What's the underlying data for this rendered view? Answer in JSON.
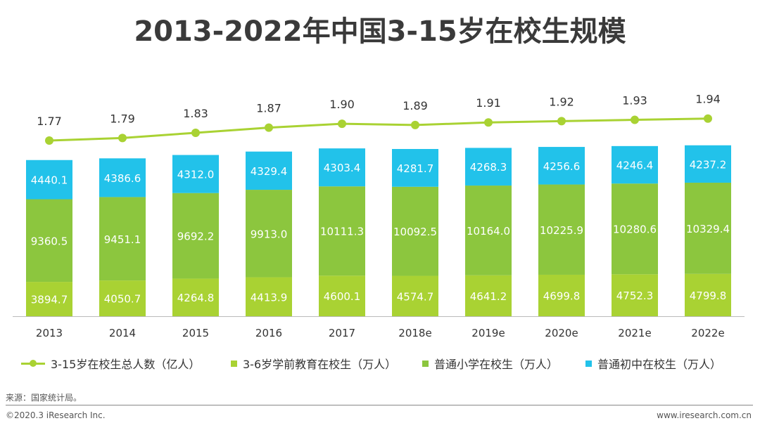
{
  "title": "2013-2022年中国3-15岁在校生规模",
  "colors": {
    "total_line": "#a9d233",
    "preschool": "#a9d233",
    "primary": "#8cc63e",
    "junior": "#22c2ea"
  },
  "chart_data": {
    "type": "bar",
    "stacked": true,
    "categories": [
      "2013",
      "2014",
      "2015",
      "2016",
      "2017",
      "2018e",
      "2019e",
      "2020e",
      "2021e",
      "2022e"
    ],
    "series": [
      {
        "name": "3-6岁学前教育在校生（万人）",
        "values": [
          3894.7,
          4050.7,
          4264.8,
          4413.9,
          4600.1,
          4574.7,
          4641.2,
          4699.8,
          4752.3,
          4799.8
        ]
      },
      {
        "name": "普通小学在校生（万人）",
        "values": [
          9360.5,
          9451.1,
          9692.2,
          9913.0,
          10111.3,
          10092.5,
          10164.0,
          10225.9,
          10280.6,
          10329.4
        ]
      },
      {
        "name": "普通初中在校生（万人）",
        "values": [
          4440.1,
          4386.6,
          4312.0,
          4329.4,
          4303.4,
          4281.7,
          4268.3,
          4256.6,
          4246.4,
          4237.2
        ]
      }
    ],
    "line_series": {
      "name": "3-15岁在校生总人数（亿人）",
      "values": [
        1.77,
        1.79,
        1.83,
        1.87,
        1.9,
        1.89,
        1.91,
        1.92,
        1.93,
        1.94
      ]
    },
    "value_labels": {
      "preschool": [
        "3894.7",
        "4050.7",
        "4264.8",
        "4413.9",
        "4600.1",
        "4574.7",
        "4641.2",
        "4699.8",
        "4752.3",
        "4799.8"
      ],
      "primary": [
        "9360.5",
        "9451.1",
        "9692.2",
        "9913.0",
        "10111.3",
        "10092.5",
        "10164.0",
        "10225.9",
        "10280.6",
        "10329.4"
      ],
      "junior": [
        "4440.1",
        "4386.6",
        "4312.0",
        "4329.4",
        "4303.4",
        "4281.7",
        "4268.3",
        "4256.6",
        "4246.4",
        "4237.2"
      ],
      "total": [
        "1.77",
        "1.79",
        "1.83",
        "1.87",
        "1.90",
        "1.89",
        "1.91",
        "1.92",
        "1.93",
        "1.94"
      ]
    },
    "legend_position": "bottom"
  },
  "legend": {
    "total": "3-15岁在校生总人数（亿人）",
    "preschool": "3-6岁学前教育在校生（万人）",
    "primary": "普通小学在校生（万人）",
    "junior": "普通初中在校生（万人）"
  },
  "footer": {
    "source": "来源：国家统计局。",
    "copyright": "©2020.3 iResearch Inc.",
    "website": "www.iresearch.com.cn"
  }
}
